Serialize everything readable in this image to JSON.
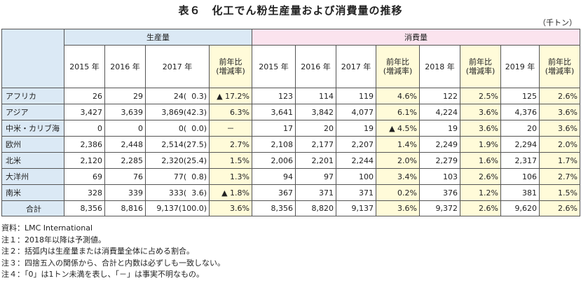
{
  "title": "表６　化工でん粉生産量および消費量の推移",
  "unit": "（千トン）",
  "headers": {
    "production": "生産量",
    "consumption": "消費量",
    "years_prod": [
      "2015 年",
      "2016 年",
      "2017 年"
    ],
    "years_cons": [
      "2015 年",
      "2016 年",
      "2017 年",
      "2018 年",
      "2019 年"
    ],
    "yoy": "前年比\n(増減率)"
  },
  "rows": [
    {
      "region": "アフリカ",
      "p2015": "26",
      "p2016": "29",
      "p2017": "24(  0.3)",
      "p_yoy": "▲ 17.2%",
      "c2015": "123",
      "c2016": "114",
      "c2017": "119",
      "c2017_yoy": "4.6%",
      "c2018": "122",
      "c2018_yoy": "2.5%",
      "c2019": "125",
      "c2019_yoy": "2.6%"
    },
    {
      "region": "アジア",
      "p2015": "3,427",
      "p2016": "3,639",
      "p2017": "3,869(42.3)",
      "p_yoy": "6.3%",
      "c2015": "3,641",
      "c2016": "3,842",
      "c2017": "4,077",
      "c2017_yoy": "6.1%",
      "c2018": "4,224",
      "c2018_yoy": "3.6%",
      "c2019": "4,376",
      "c2019_yoy": "3.6%"
    },
    {
      "region": "中米・カリブ海",
      "p2015": "0",
      "p2016": "0",
      "p2017": "0(  0.0)",
      "p_yoy": "－",
      "c2015": "17",
      "c2016": "20",
      "c2017": "19",
      "c2017_yoy": "▲ 4.5%",
      "c2018": "19",
      "c2018_yoy": "3.6%",
      "c2019": "20",
      "c2019_yoy": "3.6%"
    },
    {
      "region": "欧州",
      "p2015": "2,386",
      "p2016": "2,448",
      "p2017": "2,514(27.5)",
      "p_yoy": "2.7%",
      "c2015": "2,108",
      "c2016": "2,177",
      "c2017": "2,207",
      "c2017_yoy": "1.4%",
      "c2018": "2,249",
      "c2018_yoy": "1.9%",
      "c2019": "2,294",
      "c2019_yoy": "2.0%"
    },
    {
      "region": "北米",
      "p2015": "2,120",
      "p2016": "2,285",
      "p2017": "2,320(25.4)",
      "p_yoy": "1.5%",
      "c2015": "2,006",
      "c2016": "2,201",
      "c2017": "2,244",
      "c2017_yoy": "2.0%",
      "c2018": "2,279",
      "c2018_yoy": "1.6%",
      "c2019": "2,317",
      "c2019_yoy": "1.7%"
    },
    {
      "region": "大洋州",
      "p2015": "69",
      "p2016": "76",
      "p2017": "77(  0.8)",
      "p_yoy": "1.3%",
      "c2015": "94",
      "c2016": "97",
      "c2017": "100",
      "c2017_yoy": "3.4%",
      "c2018": "103",
      "c2018_yoy": "2.6%",
      "c2019": "106",
      "c2019_yoy": "2.7%"
    },
    {
      "region": "南米",
      "p2015": "328",
      "p2016": "339",
      "p2017": "333(  3.6)",
      "p_yoy": "▲ 1.8%",
      "c2015": "367",
      "c2016": "371",
      "c2017": "371",
      "c2017_yoy": "0.2%",
      "c2018": "376",
      "c2018_yoy": "1.2%",
      "c2019": "381",
      "c2019_yoy": "1.5%"
    }
  ],
  "total": {
    "region": "合計",
    "p2015": "8,356",
    "p2016": "8,816",
    "p2017": "9,137(100.0)",
    "p_yoy": "3.6%",
    "c2015": "8,356",
    "c2016": "8,820",
    "c2017": "9,137",
    "c2017_yoy": "3.6%",
    "c2018": "9,372",
    "c2018_yoy": "2.6%",
    "c2019": "9,620",
    "c2019_yoy": "2.6%"
  },
  "notes": [
    "資料：LMC International",
    "注１：2018年以降は予測値。",
    "注２：括弧内は生産量または消費量全体に占める割合。",
    "注３：四捨五入の関係から、合計と内数は必ずしも一致しない。",
    "注４：「0」は1トン未満を表し、「－」は事実不明なもの。"
  ],
  "colors": {
    "header_blue": "#dbe9f5",
    "header_pink": "#fbe3ee",
    "yoy_yellow": "#fffbd9"
  }
}
